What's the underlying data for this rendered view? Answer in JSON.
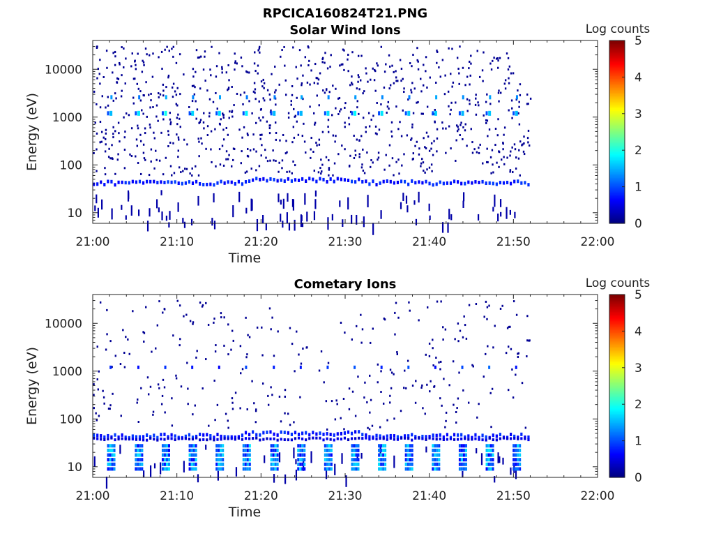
{
  "figure": {
    "title": "RPCICA160824T21.PNG"
  },
  "colormap": {
    "name": "jet",
    "stops": [
      "#00007f",
      "#0000ff",
      "#007fff",
      "#00ffff",
      "#7fff7f",
      "#ffff00",
      "#ff7f00",
      "#ff0000",
      "#7f0000"
    ]
  },
  "chart_data": [
    {
      "type": "heatmap",
      "title": "Solar Wind Ions",
      "xlabel": "Time",
      "ylabel": "Energy (eV)",
      "x_tick_labels": [
        "21:00",
        "21:10",
        "21:20",
        "21:30",
        "21:40",
        "21:50",
        "22:00"
      ],
      "x_tick_minutes": [
        0,
        10,
        20,
        30,
        40,
        50,
        60
      ],
      "xlim_minutes": [
        0,
        60
      ],
      "y_scale": "log",
      "ylim": [
        6,
        40000
      ],
      "y_tick_labels": [
        "10",
        "100",
        "1000",
        "10000"
      ],
      "y_tick_values": [
        10,
        100,
        1000,
        10000
      ],
      "colorbar": {
        "label": "Log counts",
        "range": [
          0,
          5
        ],
        "tick_labels": [
          "0",
          "1",
          "2",
          "3",
          "4",
          "5"
        ]
      },
      "data_extent_minutes": [
        0,
        52
      ],
      "features": [
        {
          "description": "sparse noise counts across all energies",
          "minutes": [
            0,
            52
          ],
          "energy_eV": [
            6,
            30000
          ],
          "log_counts": 0.1
        },
        {
          "description": "continuous band near 45 eV",
          "minutes": [
            0,
            52
          ],
          "energy_eV": [
            38,
            50
          ],
          "log_counts": 0.4
        },
        {
          "description": "periodic spots near 1200 eV every ~3.2 min",
          "period_minutes": 3.2,
          "energy_eV": 1200,
          "log_counts": 1.7
        }
      ],
      "spot_times_minutes": [
        2.0,
        5.3,
        8.5,
        11.7,
        14.9,
        18.1,
        21.4,
        24.6,
        27.8,
        31.0,
        34.2,
        37.4,
        40.6,
        43.8,
        47.0,
        50.2
      ]
    },
    {
      "type": "heatmap",
      "title": "Cometary Ions",
      "xlabel": "Time",
      "ylabel": "Energy (eV)",
      "x_tick_labels": [
        "21:00",
        "21:10",
        "21:20",
        "21:30",
        "21:40",
        "21:50",
        "22:00"
      ],
      "x_tick_minutes": [
        0,
        10,
        20,
        30,
        40,
        50,
        60
      ],
      "xlim_minutes": [
        0,
        60
      ],
      "y_scale": "log",
      "ylim": [
        6,
        40000
      ],
      "y_tick_labels": [
        "10",
        "100",
        "1000",
        "10000"
      ],
      "y_tick_values": [
        10,
        100,
        1000,
        10000
      ],
      "colorbar": {
        "label": "Log counts",
        "range": [
          0,
          5
        ],
        "tick_labels": [
          "0",
          "1",
          "2",
          "3",
          "4",
          "5"
        ]
      },
      "data_extent_minutes": [
        0,
        52
      ],
      "features": [
        {
          "description": "sparse noise counts",
          "minutes": [
            0,
            52
          ],
          "energy_eV": [
            6,
            30000
          ],
          "log_counts": 0.1
        },
        {
          "description": "continuous band near 45-50 eV",
          "minutes": [
            0,
            52
          ],
          "energy_eV": [
            38,
            55
          ],
          "log_counts": 0.6
        },
        {
          "description": "periodic low-energy bursts 10-25 eV",
          "period_minutes": 3.2,
          "energy_eV": [
            10,
            25
          ],
          "log_counts": 1.3
        },
        {
          "description": "periodic points near 1200 eV",
          "period_minutes": 3.2,
          "energy_eV": 1200,
          "log_counts": 0.8
        }
      ],
      "spot_times_minutes": [
        2.0,
        5.3,
        8.5,
        11.7,
        14.9,
        18.1,
        21.4,
        24.6,
        27.8,
        31.0,
        34.2,
        37.4,
        40.6,
        43.8,
        47.0,
        50.2
      ]
    }
  ]
}
